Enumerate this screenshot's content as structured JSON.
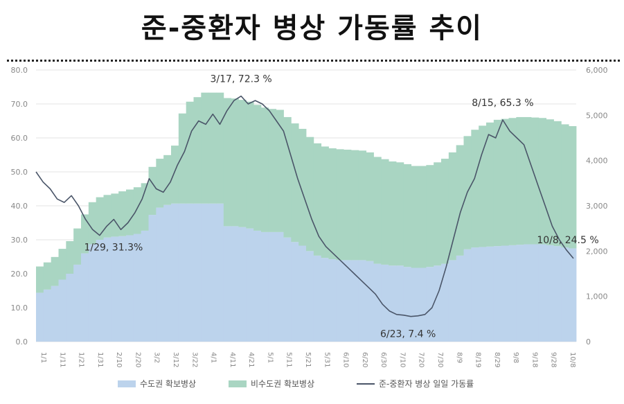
{
  "title": "준-중환자 병상 가동률 추이",
  "chart_data": {
    "type": "bar+line",
    "left_axis": {
      "min": 0,
      "max": 80,
      "ticks": [
        "0.0",
        "10.0",
        "20.0",
        "30.0",
        "40.0",
        "50.0",
        "60.0",
        "70.0",
        "80.0"
      ]
    },
    "right_axis": {
      "min": 0,
      "max": 6000,
      "ticks": [
        "0",
        "1,000",
        "2,000",
        "3,000",
        "4,000",
        "5,000",
        "6,000"
      ]
    },
    "x_tick_labels": [
      "1/1",
      "1/11",
      "1/21",
      "1/31",
      "2/10",
      "2/20",
      "3/2",
      "3/12",
      "3/22",
      "4/1",
      "4/11",
      "4/21",
      "5/1",
      "5/11",
      "5/21",
      "5/31",
      "6/10",
      "6/20",
      "6/30",
      "7/10",
      "7/20",
      "7/30",
      "8/9",
      "8/19",
      "8/29",
      "9/8",
      "9/18",
      "9/28",
      "10/8"
    ],
    "series": [
      {
        "name": "수도권 확보병상",
        "color": "#bcd3ec",
        "axis": "right",
        "values": [
          1080,
          1150,
          1230,
          1370,
          1500,
          1700,
          1950,
          2150,
          2250,
          2300,
          2320,
          2330,
          2350,
          2380,
          2450,
          2800,
          2960,
          3020,
          3050,
          3050,
          3050,
          3050,
          3050,
          3050,
          3050,
          2550,
          2550,
          2530,
          2500,
          2450,
          2420,
          2420,
          2420,
          2300,
          2200,
          2120,
          2000,
          1900,
          1850,
          1820,
          1800,
          1800,
          1800,
          1800,
          1780,
          1720,
          1700,
          1680,
          1680,
          1650,
          1630,
          1630,
          1650,
          1680,
          1720,
          1800,
          1900,
          2040,
          2080,
          2090,
          2100,
          2110,
          2120,
          2130,
          2140,
          2150,
          2150,
          2150,
          2130,
          2110,
          2080,
          2060
        ]
      },
      {
        "name": "비수도권 확보병상",
        "color": "#a9d5c2",
        "axis": "right",
        "values": [
          580,
          600,
          640,
          680,
          720,
          800,
          860,
          930,
          940,
          940,
          950,
          990,
          1010,
          1030,
          1050,
          1060,
          1080,
          1100,
          1280,
          1990,
          2250,
          2350,
          2450,
          2450,
          2450,
          2830,
          2820,
          2810,
          2800,
          2780,
          2750,
          2720,
          2700,
          2660,
          2620,
          2580,
          2520,
          2480,
          2460,
          2450,
          2450,
          2440,
          2430,
          2420,
          2400,
          2360,
          2330,
          2300,
          2280,
          2270,
          2250,
          2250,
          2250,
          2280,
          2320,
          2380,
          2440,
          2500,
          2600,
          2680,
          2740,
          2790,
          2800,
          2810,
          2820,
          2810,
          2800,
          2790,
          2780,
          2760,
          2720,
          2700
        ]
      },
      {
        "name": "준-중환자 병상 일일 가동률",
        "color": "#4a5568",
        "axis": "left",
        "type": "line",
        "points": [
          [
            0,
            50
          ],
          [
            1,
            47
          ],
          [
            2,
            45
          ],
          [
            3,
            42
          ],
          [
            4,
            41
          ],
          [
            5,
            43
          ],
          [
            6,
            40
          ],
          [
            7,
            36
          ],
          [
            8,
            33
          ],
          [
            9,
            31.3
          ],
          [
            10,
            34
          ],
          [
            11,
            36
          ],
          [
            12,
            33
          ],
          [
            13,
            35
          ],
          [
            14,
            38
          ],
          [
            15,
            42
          ],
          [
            16,
            48
          ],
          [
            17,
            45
          ],
          [
            18,
            44
          ],
          [
            19,
            47
          ],
          [
            20,
            52
          ],
          [
            21,
            56
          ],
          [
            22,
            62
          ],
          [
            23,
            65
          ],
          [
            24,
            64
          ],
          [
            25,
            67
          ],
          [
            26,
            64
          ],
          [
            27,
            68
          ],
          [
            28,
            71
          ],
          [
            29,
            72.3
          ],
          [
            30,
            70
          ],
          [
            31,
            71
          ],
          [
            32,
            70
          ],
          [
            33,
            68
          ],
          [
            34,
            65
          ],
          [
            35,
            62
          ],
          [
            36,
            55
          ],
          [
            37,
            48
          ],
          [
            38,
            42
          ],
          [
            39,
            36
          ],
          [
            40,
            31
          ],
          [
            41,
            28
          ],
          [
            42,
            26
          ],
          [
            43,
            24
          ],
          [
            44,
            22
          ],
          [
            45,
            20
          ],
          [
            46,
            18
          ],
          [
            47,
            16
          ],
          [
            48,
            14
          ],
          [
            49,
            11
          ],
          [
            50,
            9
          ],
          [
            51,
            8
          ],
          [
            52,
            7.8
          ],
          [
            53,
            7.4
          ],
          [
            54,
            7.6
          ],
          [
            55,
            8
          ],
          [
            56,
            10
          ],
          [
            57,
            15
          ],
          [
            58,
            22
          ],
          [
            59,
            30
          ],
          [
            60,
            38
          ],
          [
            61,
            44
          ],
          [
            62,
            48
          ],
          [
            63,
            55
          ],
          [
            64,
            61
          ],
          [
            65,
            60
          ],
          [
            66,
            65.3
          ],
          [
            67,
            62
          ],
          [
            68,
            60
          ],
          [
            69,
            58
          ],
          [
            70,
            52
          ],
          [
            71,
            46
          ],
          [
            72,
            40
          ],
          [
            73,
            34
          ],
          [
            74,
            30
          ],
          [
            75,
            27
          ],
          [
            76,
            24.5
          ]
        ]
      }
    ],
    "annotations": [
      {
        "text": "3/17, 72.3 %",
        "x": 29,
        "y": 72.3
      },
      {
        "text": "1/29, 31.3%",
        "x": 9,
        "y": 31.3
      },
      {
        "text": "6/23, 7.4 %",
        "x": 53,
        "y": 7.4
      },
      {
        "text": "8/15, 65.3 %",
        "x": 66,
        "y": 65.3
      },
      {
        "text": "10/8, 24.5 %",
        "x": 76,
        "y": 24.5
      }
    ],
    "legend": {
      "placement": "bottom"
    }
  }
}
